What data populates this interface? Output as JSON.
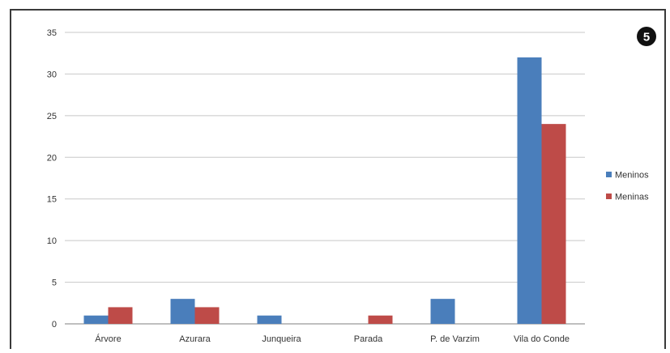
{
  "badge": {
    "label": "5"
  },
  "chart_data": {
    "type": "bar",
    "categories": [
      "Árvore",
      "Azurara",
      "Junqueira",
      "Parada",
      "P. de Varzim",
      "Vila do Conde"
    ],
    "series": [
      {
        "name": "Meninos",
        "color": "#4a7ebb",
        "values": [
          1,
          3,
          1,
          0,
          3,
          32
        ]
      },
      {
        "name": "Meninas",
        "color": "#be4b48",
        "values": [
          2,
          2,
          0,
          1,
          0,
          24
        ]
      }
    ],
    "ylim": [
      0,
      35
    ],
    "yticks": [
      0,
      5,
      10,
      15,
      20,
      25,
      30,
      35
    ],
    "grid": true,
    "legend_position": "right",
    "title": "",
    "xlabel": "",
    "ylabel": ""
  }
}
